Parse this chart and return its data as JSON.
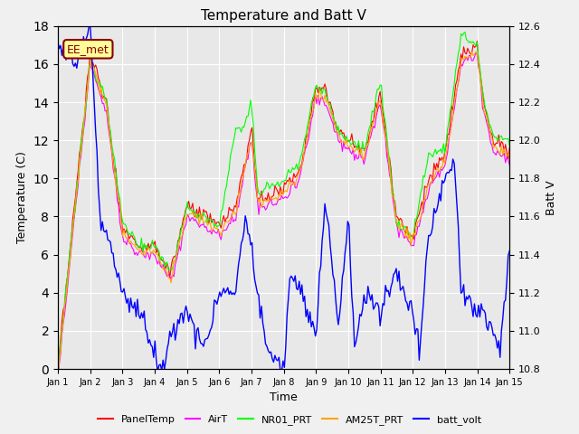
{
  "title": "Temperature and Batt V",
  "xlabel": "Time",
  "ylabel_left": "Temperature (C)",
  "ylabel_right": "Batt V",
  "annotation": "EE_met",
  "annotation_color": "#8B0000",
  "annotation_bg": "#FFFF99",
  "xlim": [
    0,
    14
  ],
  "ylim_left": [
    0,
    18
  ],
  "ylim_right": [
    10.8,
    12.6
  ],
  "xtick_labels": [
    "Jan 1",
    "Jan 2",
    "Jan 3",
    "Jan 4",
    "Jan 5",
    "Jan 6",
    "Jan 7",
    "Jan 8",
    "Jan 9",
    "Jan 10",
    "Jan 11",
    "Jan 12",
    "Jan 13",
    "Jan 14",
    "Jan 15"
  ],
  "ytick_left": [
    0,
    2,
    4,
    6,
    8,
    10,
    12,
    14,
    16,
    18
  ],
  "ytick_right": [
    10.8,
    11.0,
    11.2,
    11.4,
    11.6,
    11.8,
    12.0,
    12.2,
    12.4,
    12.6
  ],
  "bg_color": "#E8E8E8",
  "grid_color": "#FFFFFF",
  "series_colors": {
    "PanelTemp": "#FF0000",
    "AirT": "#FF00FF",
    "NR01_PRT": "#00FF00",
    "AM25T_PRT": "#FFA500",
    "batt_volt": "#0000FF"
  },
  "legend_entries": [
    "PanelTemp",
    "AirT",
    "NR01_PRT",
    "AM25T_PRT",
    "batt_volt"
  ],
  "PanelTemp": [
    null,
    16.5,
    14.9,
    8.1,
    7.0,
    6.3,
    6.2,
    5.0,
    5.0,
    8.8,
    9.0,
    8.2,
    7.5,
    8.0,
    8.2,
    8.5,
    7.9,
    7.5,
    9.5,
    9.0,
    9.0,
    9.5,
    12.5,
    14.8,
    14.7,
    12.7,
    12.2,
    12.5,
    11.2,
    10.8,
    10.5,
    11.0,
    12.0,
    14.2,
    14.0,
    14.5,
    8.0,
    7.5,
    7.2,
    7.0,
    8.8,
    9.0,
    9.2,
    11.2,
    10.8,
    10.5,
    10.5,
    11.0,
    15.5,
    17.3,
    16.8,
    14.0,
    12.8,
    12.0,
    11.0,
    11.5,
    12.0,
    12.5,
    11.5,
    11.0,
    11.0,
    10.5,
    10.8,
    11.5,
    12.5,
    13.2,
    13.0,
    12.3,
    11.0
  ],
  "AirT": [
    null,
    16.0,
    14.5,
    7.5,
    6.5,
    5.8,
    5.7,
    4.5,
    4.5,
    8.2,
    8.5,
    7.8,
    7.0,
    7.5,
    7.8,
    8.0,
    7.5,
    7.0,
    9.0,
    8.5,
    8.5,
    9.0,
    11.8,
    14.0,
    13.5,
    12.0,
    11.8,
    12.0,
    10.8,
    10.5,
    10.0,
    10.5,
    11.5,
    13.5,
    13.2,
    13.8,
    7.5,
    7.0,
    6.8,
    6.5,
    8.2,
    8.5,
    8.8,
    10.8,
    10.5,
    10.2,
    10.2,
    10.5,
    14.8,
    16.5,
    16.0,
    13.5,
    12.2,
    11.5,
    10.5,
    11.0,
    11.5,
    12.0,
    11.0,
    10.5,
    10.5,
    10.0,
    10.2,
    11.0,
    12.0,
    12.5,
    12.2,
    11.8,
    10.5
  ],
  "NR01_PRT": [
    null,
    16.2,
    14.8,
    7.8,
    6.8,
    6.2,
    6.0,
    4.8,
    5.5,
    8.5,
    8.7,
    8.0,
    7.2,
    7.8,
    8.0,
    8.3,
    7.8,
    7.2,
    12.5,
    12.8,
    12.2,
    13.8,
    14.0,
    14.2,
    14.5,
    12.5,
    12.0,
    12.3,
    11.0,
    10.7,
    10.3,
    10.8,
    11.8,
    13.8,
    14.8,
    15.2,
    8.2,
    7.8,
    7.5,
    7.2,
    9.0,
    9.2,
    9.5,
    11.5,
    11.0,
    10.8,
    10.8,
    11.2,
    11.2,
    17.5,
    17.0,
    14.2,
    13.0,
    12.2,
    11.2,
    11.8,
    12.2,
    12.8,
    12.0,
    11.5,
    11.5,
    11.0,
    11.2,
    12.0,
    12.8,
    12.2,
    12.5,
    12.2,
    12.0
  ],
  "AM25T_PRT": [
    null,
    16.3,
    14.7,
    7.9,
    6.7,
    6.1,
    5.9,
    4.7,
    5.2,
    8.6,
    8.8,
    8.1,
    7.3,
    7.9,
    8.1,
    8.4,
    7.9,
    7.3,
    9.2,
    9.0,
    8.8,
    9.5,
    12.0,
    14.3,
    14.2,
    12.2,
    11.9,
    12.2,
    10.9,
    10.6,
    10.2,
    10.7,
    11.7,
    13.9,
    14.5,
    15.0,
    8.1,
    7.7,
    7.4,
    7.1,
    8.9,
    9.1,
    9.4,
    11.4,
    10.9,
    10.7,
    10.7,
    11.1,
    14.5,
    17.2,
    16.8,
    14.0,
    12.8,
    12.0,
    11.0,
    11.6,
    12.0,
    12.6,
    11.8,
    11.3,
    11.3,
    10.8,
    11.0,
    11.8,
    12.5,
    12.0,
    12.3,
    12.0,
    11.8
  ],
  "batt_volt_left_scale": [
    null,
    16.8,
    7.5,
    7.0,
    5.0,
    4.5,
    3.0,
    2.5,
    2.2,
    2.5,
    2.0,
    2.0,
    1.5,
    1.2,
    1.2,
    0.5,
    1.5,
    3.5,
    4.5,
    4.2,
    3.8,
    3.2,
    2.8,
    2.2,
    2.0,
    3.5,
    4.0,
    3.8,
    4.5,
    4.5,
    4.5,
    4.5,
    4.5,
    8.5,
    4.5,
    4.5,
    3.5,
    3.0,
    3.0,
    3.0,
    2.5,
    2.5,
    2.5,
    3.5,
    4.0,
    3.8,
    3.5,
    3.5,
    2.5,
    2.0,
    1.8,
    1.5,
    1.2,
    1.0,
    0.8,
    1.5,
    2.0,
    1.8,
    4.5,
    8.5,
    11.8,
    11.5,
    5.5,
    4.5,
    4.0,
    3.8,
    3.5,
    3.5,
    6.5
  ]
}
